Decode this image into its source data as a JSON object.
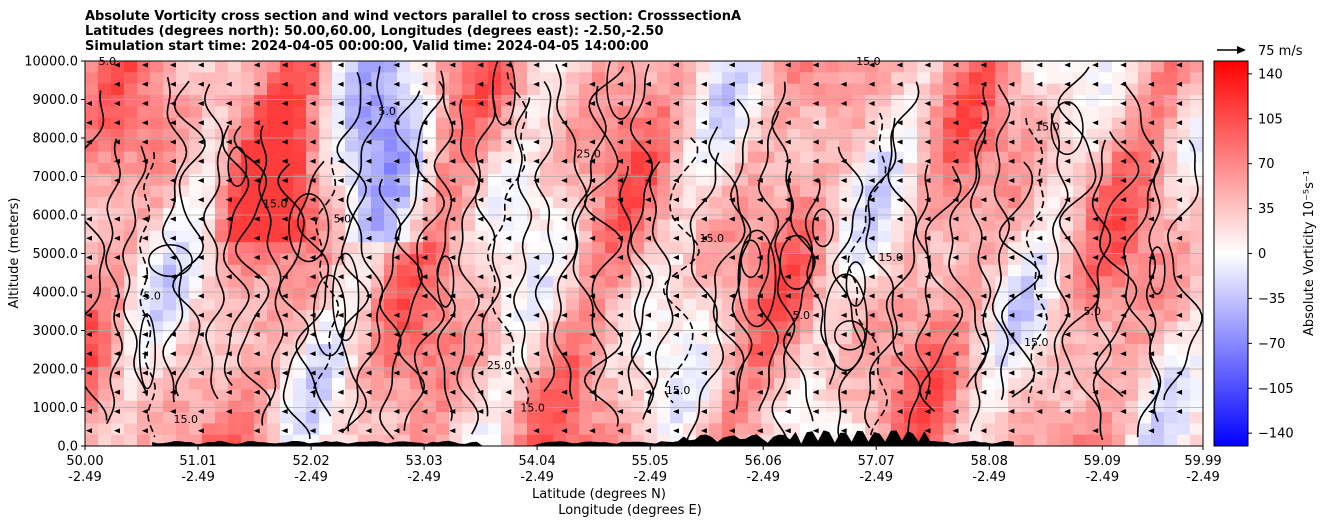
{
  "chart_data": {
    "type": "heatmap",
    "title_lines": [
      "Absolute Vorticity cross section and wind vectors parallel to cross section: CrosssectionA",
      "Latitudes (degrees north): 50.00,60.00, Longitudes (degrees east): -2.50,-2.50",
      "Simulation start time: 2024-04-05 00:00:00, Valid time: 2024-04-05 14:00:00"
    ],
    "xlabel_line1": "Latitude (degrees N)",
    "xlabel_line2": "Longitude (degrees E)",
    "ylabel": "Altitude (meters)",
    "ylim": [
      0,
      10000
    ],
    "y_ticks": [
      0,
      1000,
      2000,
      3000,
      4000,
      5000,
      6000,
      7000,
      8000,
      9000,
      10000
    ],
    "y_tick_labels": [
      "0.0",
      "1000.0",
      "2000.0",
      "3000.0",
      "4000.0",
      "5000.0",
      "6000.0",
      "7000.0",
      "8000.0",
      "9000.0",
      "10000.0"
    ],
    "x_ticks": [
      {
        "lat": "50.00",
        "lon": "-2.49"
      },
      {
        "lat": "51.01",
        "lon": "-2.49"
      },
      {
        "lat": "52.02",
        "lon": "-2.49"
      },
      {
        "lat": "53.03",
        "lon": "-2.49"
      },
      {
        "lat": "54.04",
        "lon": "-2.49"
      },
      {
        "lat": "55.05",
        "lon": "-2.49"
      },
      {
        "lat": "56.06",
        "lon": "-2.49"
      },
      {
        "lat": "57.07",
        "lon": "-2.49"
      },
      {
        "lat": "58.08",
        "lon": "-2.49"
      },
      {
        "lat": "59.09",
        "lon": "-2.49"
      },
      {
        "lat": "59.99",
        "lon": "-2.49"
      }
    ],
    "grid": "horizontal",
    "colorbar": {
      "label": "Absolute Vorticity 10⁻⁵s⁻¹",
      "range": [
        -150,
        150
      ],
      "ticks": [
        140,
        105,
        70,
        35,
        0,
        -35,
        -70,
        -105,
        -140
      ],
      "colors": {
        "high": "#ff0000",
        "mid": "#ffffff",
        "low": "#0000ff"
      }
    },
    "quiver_key": {
      "label": "75 m/s",
      "value": 75
    },
    "contour_levels": [
      5.0,
      15.0,
      25.0,
      35.0
    ],
    "contour_labels": [
      {
        "text": "15.0",
        "lat": 51.7,
        "alt": 6200
      },
      {
        "text": "5.0",
        "lat": 52.3,
        "alt": 5800
      },
      {
        "text": "15.0",
        "lat": 55.6,
        "alt": 5300
      },
      {
        "text": "15.0",
        "lat": 57.2,
        "alt": 4800
      },
      {
        "text": "15.0",
        "lat": 58.5,
        "alt": 2600
      },
      {
        "text": "15.0",
        "lat": 55.3,
        "alt": 1350
      },
      {
        "text": "15.0",
        "lat": 50.9,
        "alt": 600
      },
      {
        "text": "5.0",
        "lat": 50.2,
        "alt": 9900
      },
      {
        "text": "15.0",
        "lat": 57.0,
        "alt": 9900
      },
      {
        "text": "25.0",
        "lat": 53.7,
        "alt": 2000
      },
      {
        "text": "5.0",
        "lat": 59.0,
        "alt": 3400
      },
      {
        "text": "25.0",
        "lat": 54.5,
        "alt": 7500
      },
      {
        "text": "5.0",
        "lat": 52.7,
        "alt": 8600
      },
      {
        "text": "15.0",
        "lat": 58.6,
        "alt": 8200
      },
      {
        "text": "5.0",
        "lat": 50.6,
        "alt": 3800
      },
      {
        "text": "15.0",
        "lat": 54.0,
        "alt": 900
      },
      {
        "text": "5.0",
        "lat": 56.4,
        "alt": 3300
      }
    ]
  }
}
